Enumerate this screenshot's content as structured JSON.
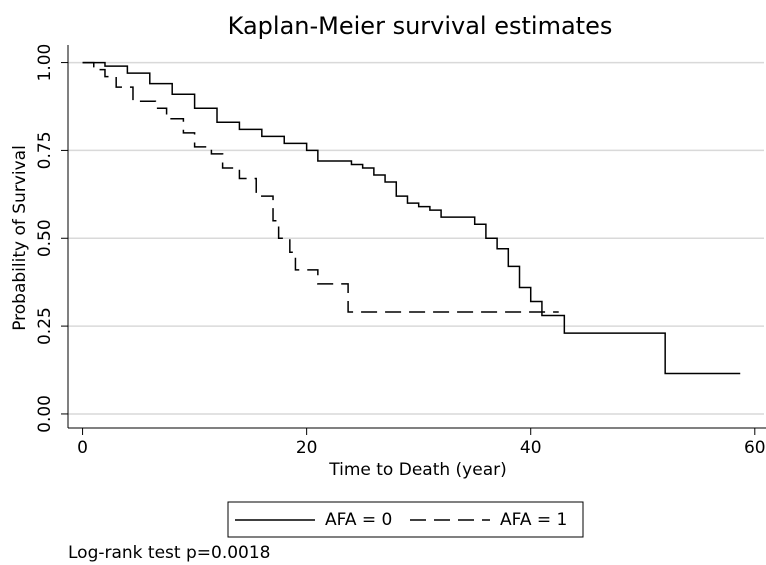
{
  "chart_data": {
    "type": "step",
    "title": "Kaplan-Meier survival estimates",
    "x_label": "Time to Death (year)",
    "y_label": "Probability of Survival",
    "note": "Log-rank test p=0.0018",
    "xlim": [
      -1.3,
      61
    ],
    "xticks": [
      0,
      20,
      40,
      60
    ],
    "ylim": [
      -0.04,
      1.05
    ],
    "yticks": [
      {
        "value": 0,
        "label": "0.00"
      },
      {
        "value": 0.25,
        "label": "0.25"
      },
      {
        "value": 0.5,
        "label": "0.50"
      },
      {
        "value": 0.75,
        "label": "0.75"
      },
      {
        "value": 1,
        "label": "1.00"
      }
    ],
    "grid": true,
    "legend": "bottom",
    "series": [
      {
        "name": "AFA = 0",
        "color": "#000000",
        "dash": "solid",
        "x": [
          0,
          2,
          4,
          6,
          8,
          10,
          12,
          14,
          16,
          18,
          20,
          21,
          24,
          25,
          26,
          27,
          28,
          29,
          30,
          31,
          32,
          35,
          36,
          37,
          38,
          39,
          40,
          41,
          43,
          52,
          58.7
        ],
        "values": [
          1,
          0.99,
          0.97,
          0.94,
          0.91,
          0.87,
          0.83,
          0.81,
          0.79,
          0.77,
          0.75,
          0.72,
          0.71,
          0.7,
          0.68,
          0.66,
          0.62,
          0.6,
          0.59,
          0.58,
          0.56,
          0.54,
          0.5,
          0.47,
          0.42,
          0.36,
          0.32,
          0.28,
          0.23,
          0.115,
          0.115
        ]
      },
      {
        "name": "AFA = 1",
        "color": "#000000",
        "dash": "dashed",
        "x": [
          0,
          1,
          2,
          3,
          4.5,
          6.5,
          7.5,
          9,
          10,
          11.5,
          12.5,
          14,
          15.5,
          17,
          17.5,
          18.5,
          19,
          21,
          23.7,
          42.5
        ],
        "values": [
          1,
          0.98,
          0.96,
          0.93,
          0.89,
          0.87,
          0.84,
          0.8,
          0.76,
          0.74,
          0.7,
          0.67,
          0.62,
          0.55,
          0.5,
          0.46,
          0.41,
          0.37,
          0.29,
          0.29
        ]
      }
    ]
  }
}
